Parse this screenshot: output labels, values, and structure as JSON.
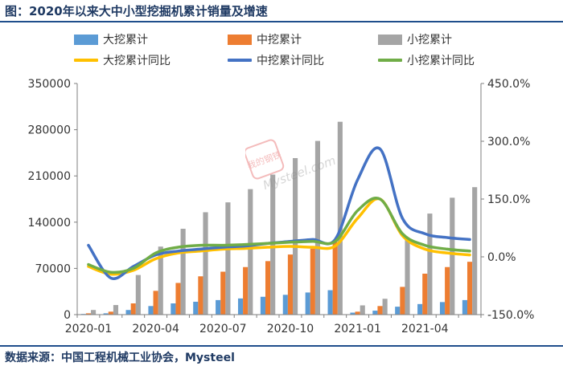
{
  "title": "图：2020年以来大中小型挖掘机累计销量及增速",
  "source": "数据来源：中国工程机械工业协会，Mysteel",
  "watermark": {
    "stamp": "我的钢铁",
    "text": "Mysteel.com"
  },
  "legend": {
    "large_cum": "大挖累计",
    "mid_cum": "中挖累计",
    "small_cum": "小挖累计",
    "large_yoy": "大挖累计同比",
    "mid_yoy": "中挖累计同比",
    "small_yoy": "小挖累计同比"
  },
  "colors": {
    "large": "#5b9bd5",
    "mid": "#ed7d31",
    "small": "#a5a5a5",
    "large_yoy": "#ffc000",
    "mid_yoy": "#4472c4",
    "small_yoy": "#70ad47"
  },
  "chart_data": {
    "type": "bar",
    "title": "2020年以来大中小型挖掘机累计销量及增速",
    "categories": [
      "2020-01",
      "2020-02",
      "2020-03",
      "2020-04",
      "2020-05",
      "2020-06",
      "2020-07",
      "2020-08",
      "2020-09",
      "2020-10",
      "2020-11",
      "2020-12",
      "2021-01",
      "2021-02",
      "2021-03",
      "2021-04",
      "2021-05",
      "2021-06"
    ],
    "x_tick_labels": [
      "2020-01",
      "",
      "",
      "2020-04",
      "",
      "",
      "2020-07",
      "",
      "",
      "2020-10",
      "",
      "",
      "2021-01",
      "",
      "",
      "2021-04",
      "",
      ""
    ],
    "series": [
      {
        "name": "大挖累计",
        "kind": "bar",
        "axis": "left",
        "values": [
          1000,
          2000,
          7000,
          13000,
          17000,
          19500,
          22000,
          24500,
          27000,
          30000,
          33500,
          37000,
          3000,
          6000,
          12000,
          16000,
          19000,
          22000
        ]
      },
      {
        "name": "中挖累计",
        "kind": "bar",
        "axis": "left",
        "values": [
          2000,
          4500,
          17000,
          36000,
          48000,
          58000,
          65000,
          72000,
          81000,
          91000,
          100000,
          110000,
          4500,
          13000,
          42000,
          62000,
          72000,
          80000
        ]
      },
      {
        "name": "小挖累计",
        "kind": "bar",
        "axis": "left",
        "values": [
          7000,
          14500,
          60000,
          103000,
          130000,
          155000,
          170000,
          190000,
          212000,
          237000,
          263000,
          292000,
          14000,
          24000,
          113000,
          153000,
          177000,
          193000
        ]
      },
      {
        "name": "大挖累计同比",
        "kind": "line",
        "axis": "right",
        "values": [
          -25,
          -45,
          -35,
          -5,
          10,
          15,
          20,
          22,
          25,
          27,
          25,
          28,
          100,
          150,
          55,
          20,
          10,
          5
        ]
      },
      {
        "name": "中挖累计同比",
        "kind": "line",
        "axis": "right",
        "values": [
          30,
          -55,
          -25,
          5,
          15,
          20,
          25,
          28,
          35,
          40,
          45,
          45,
          200,
          280,
          100,
          60,
          50,
          45
        ]
      },
      {
        "name": "小挖累计同比",
        "kind": "line",
        "axis": "right",
        "values": [
          -20,
          -40,
          -30,
          10,
          25,
          30,
          30,
          32,
          35,
          38,
          40,
          40,
          120,
          150,
          60,
          30,
          20,
          15
        ]
      }
    ],
    "y_left": {
      "min": 0,
      "max": 350000,
      "ticks": [
        "0",
        "70000",
        "140000",
        "210000",
        "280000",
        "350000"
      ]
    },
    "y_right": {
      "min": -150,
      "max": 450,
      "ticks": [
        "-150.0%",
        "0.0%",
        "150.0%",
        "300.0%",
        "450.0%"
      ]
    },
    "legend_position": "top",
    "grid": false
  }
}
